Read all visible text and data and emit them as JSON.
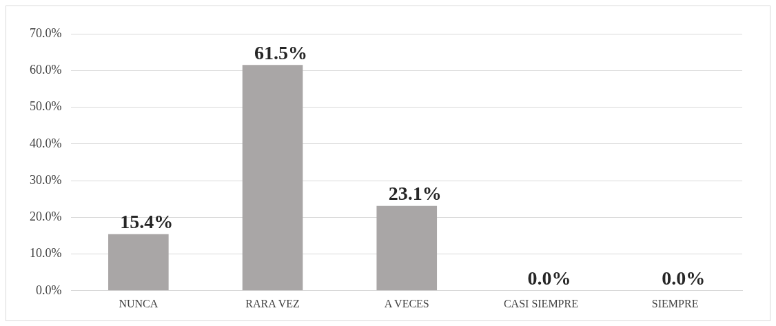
{
  "chart_data": {
    "type": "bar",
    "categories": [
      "NUNCA",
      "RARA VEZ",
      "A VECES",
      "CASI SIEMPRE",
      "SIEMPRE"
    ],
    "values": [
      15.4,
      61.5,
      23.1,
      0,
      0
    ],
    "value_labels": [
      "15.4%",
      "61.5%",
      "23.1%",
      "0.0%",
      "0.0%"
    ],
    "color": "#a9a6a6",
    "ylim": [
      0,
      70
    ],
    "yticks": [
      {
        "value": 0,
        "label": "0.0%"
      },
      {
        "value": 10,
        "label": "10.0%"
      },
      {
        "value": 20,
        "label": "20.0%"
      },
      {
        "value": 30,
        "label": "30.0%"
      },
      {
        "value": 40,
        "label": "40.0%"
      },
      {
        "value": 50,
        "label": "50.0%"
      },
      {
        "value": 60,
        "label": "60.0%"
      },
      {
        "value": 70,
        "label": "70.0%"
      }
    ],
    "grid": "y",
    "legend": false
  }
}
